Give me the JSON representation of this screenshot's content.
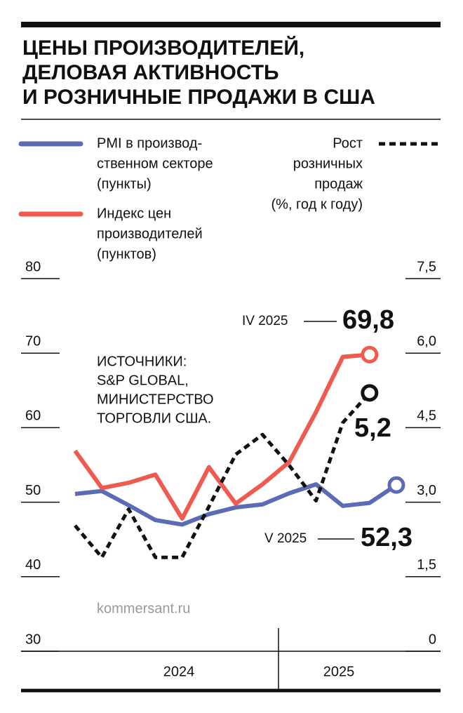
{
  "chart_data": {
    "type": "line",
    "title": [
      "ЦЕНЫ ПРОИЗВОДИТЕЛЕЙ,",
      "ДЕЛОВАЯ АКТИВНОСТЬ",
      "И РОЗНИЧНЫЕ ПРОДАЖИ В США"
    ],
    "sources": [
      "ИСТОЧНИКИ:",
      "S&P GLOBAL,",
      "МИНИСТЕРСТВО",
      "ТОРГОВЛИ США."
    ],
    "credit": "kommersant.ru",
    "categories": [
      null,
      null,
      null,
      null,
      null,
      null,
      null,
      null,
      null,
      null,
      null,
      null,
      null
    ],
    "year_labels": [
      "2024",
      "2025"
    ],
    "ylim": [
      30,
      80
    ],
    "yticks": [
      30,
      40,
      50,
      60,
      70,
      80
    ],
    "y2lim": [
      0,
      7.5
    ],
    "y2ticks": [
      0,
      {
        "value": 1.5,
        "label": "1,5"
      },
      {
        "value": 3,
        "label": "3,0"
      },
      {
        "value": 4.5,
        "label": "4,5"
      },
      {
        "value": 6,
        "label": "6,0"
      },
      {
        "value": 7.5,
        "label": "7,5"
      }
    ],
    "series": [
      {
        "name": [
          "PMI в производ-",
          "ственном секторе",
          "(пункты)"
        ],
        "color": "#5b6bb5",
        "dash": false,
        "values": [
          51.1,
          51.5,
          49.6,
          47.6,
          47.0,
          48.4,
          49.3,
          49.7,
          51.2,
          52.4,
          49.5,
          49.9,
          52.3
        ],
        "end_label": {
          "period": "V 2025",
          "text": "52,3"
        }
      },
      {
        "name": [
          "Индекс цен",
          "производителей",
          "(пунктов)"
        ],
        "color": "#f05a4f",
        "dash": false,
        "values": [
          56.9,
          51.9,
          52.6,
          53.7,
          47.8,
          54.7,
          49.8,
          52.4,
          55.4,
          62.1,
          69.5,
          69.8,
          null
        ],
        "end_label": {
          "period": "IV 2025",
          "text": "69,8"
        }
      },
      {
        "name": [
          "Рост",
          "розничных",
          "продаж",
          "(%, год к году)"
        ],
        "color": "#111111",
        "dash": true,
        "axis": "y2",
        "values": [
          2.53,
          1.89,
          2.86,
          1.89,
          1.89,
          2.91,
          3.96,
          4.36,
          3.74,
          3.03,
          4.6,
          5.2,
          null
        ],
        "end_label": {
          "text": "5,2"
        }
      }
    ]
  }
}
